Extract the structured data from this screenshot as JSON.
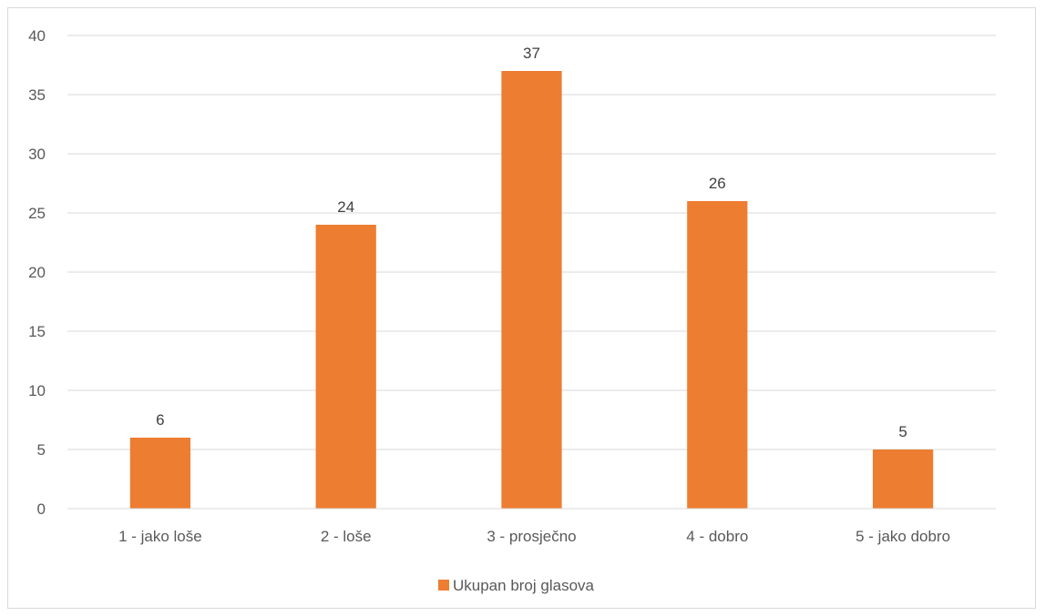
{
  "chart_data": {
    "type": "bar",
    "categories": [
      "1 - jako loše",
      "2 - loše",
      "3 - prosječno",
      "4 - dobro",
      "5 - jako dobro"
    ],
    "series": [
      {
        "name": "Ukupan broj glasova",
        "values": [
          6,
          24,
          37,
          26,
          5
        ],
        "color": "#ED7D31"
      }
    ],
    "ylim": [
      0,
      40
    ],
    "yticks": [
      0,
      5,
      10,
      15,
      20,
      25,
      30,
      35,
      40
    ],
    "grid": true,
    "data_labels": true,
    "legend_position": "bottom"
  }
}
